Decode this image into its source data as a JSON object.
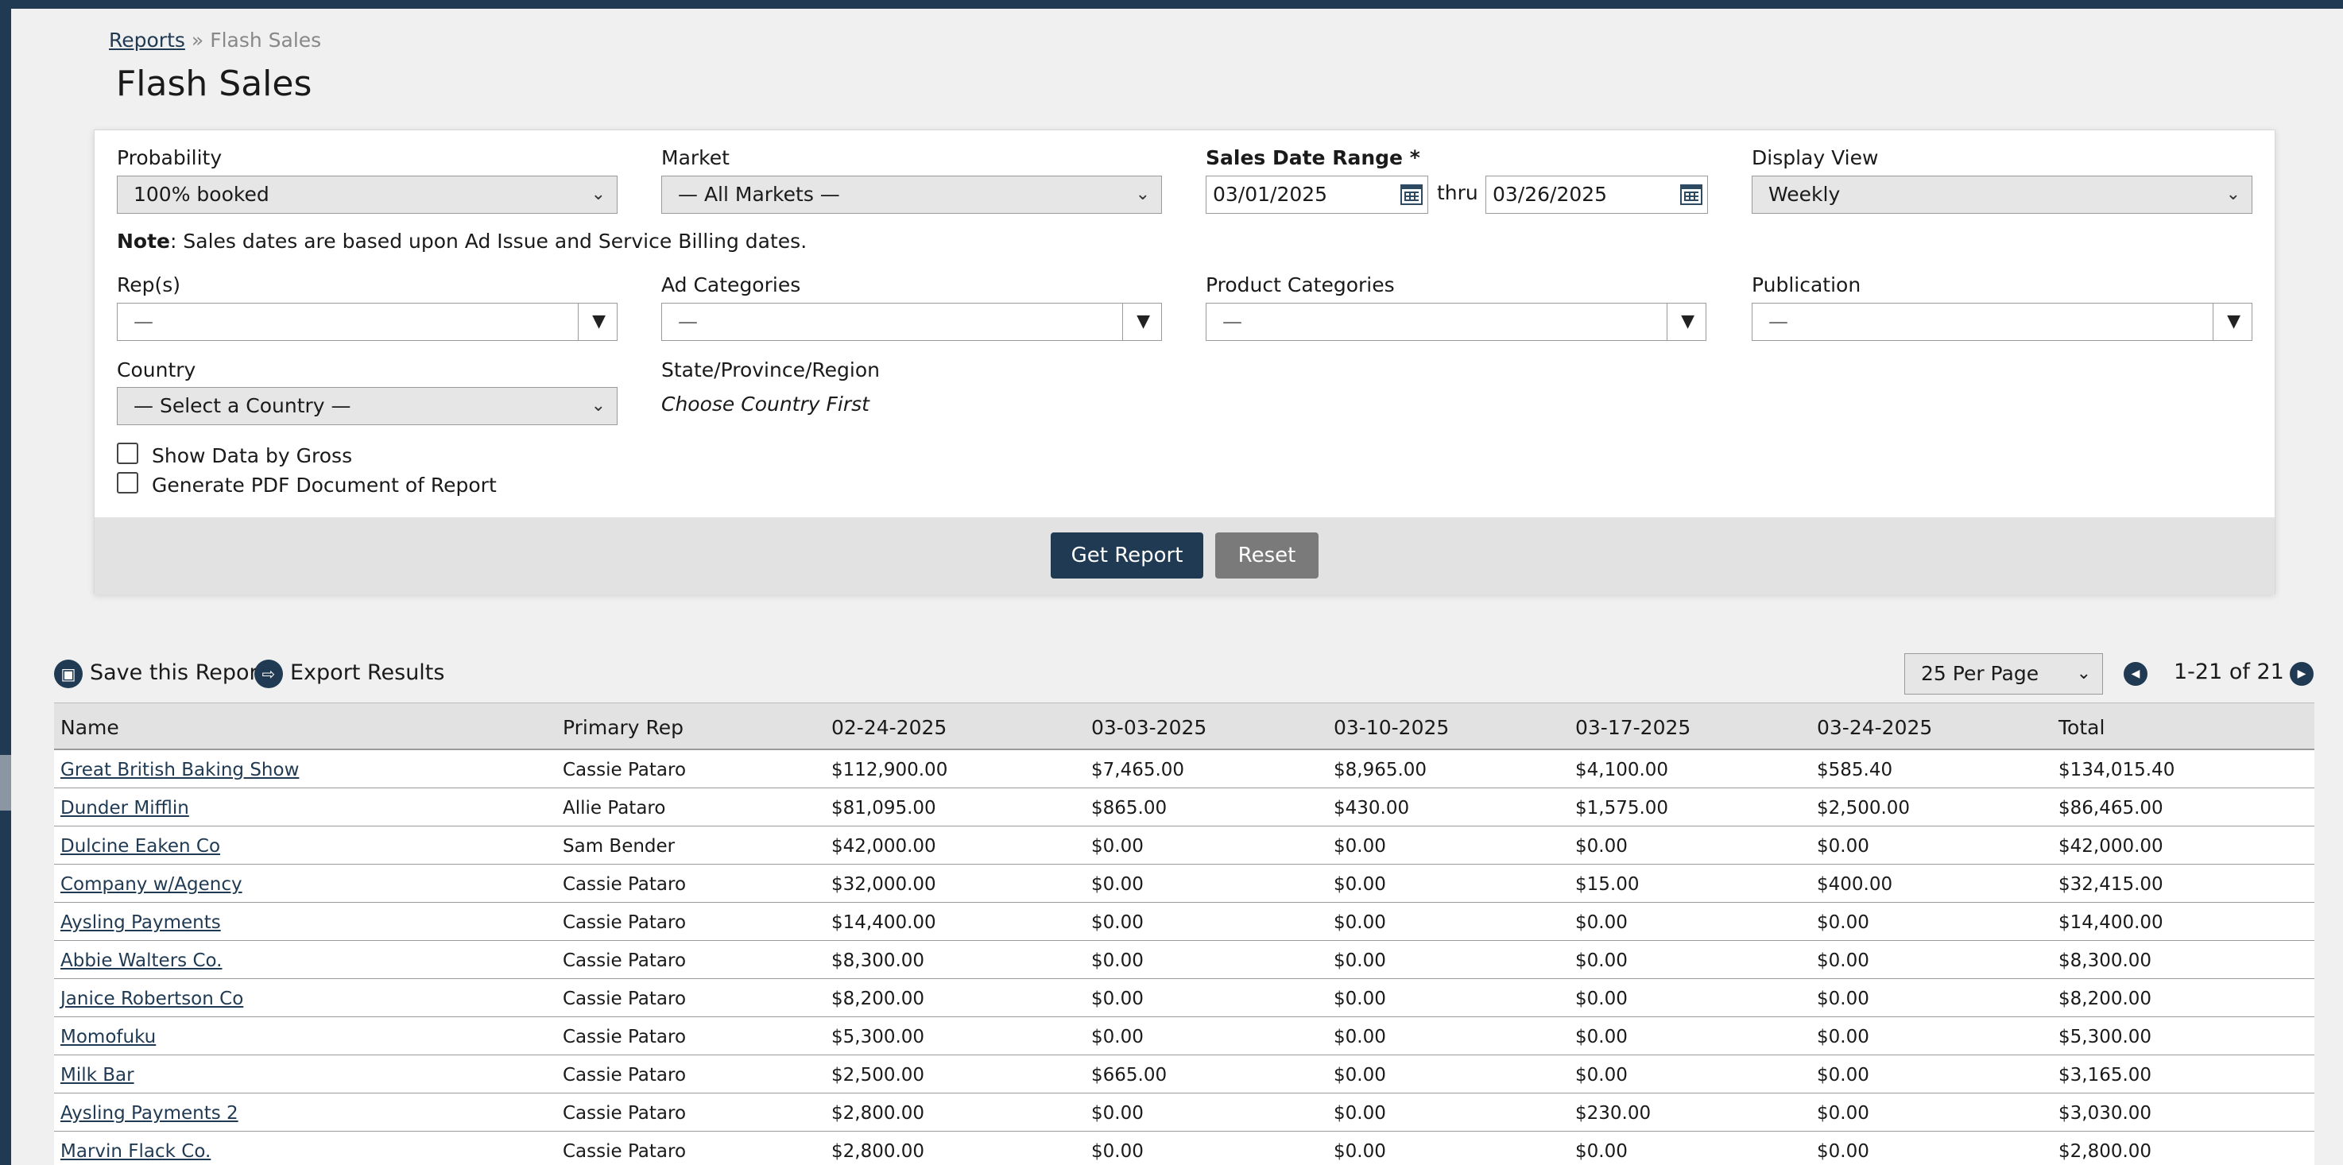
{
  "breadcrumb": {
    "parent": "Reports",
    "separator": "»",
    "current": "Flash Sales"
  },
  "page_title": "Flash Sales",
  "filters": {
    "probability": {
      "label": "Probability",
      "value": "100% booked"
    },
    "market": {
      "label": "Market",
      "value": "— All Markets —"
    },
    "sales_date_range": {
      "label": "Sales Date Range *",
      "from": "03/01/2025",
      "thru_label": "thru",
      "to": "03/26/2025"
    },
    "display_view": {
      "label": "Display View",
      "value": "Weekly"
    },
    "note_prefix": "Note",
    "note_text": ": Sales dates are based upon Ad Issue and Service Billing dates.",
    "reps": {
      "label": "Rep(s)",
      "value": "—"
    },
    "ad_categories": {
      "label": "Ad Categories",
      "value": "—"
    },
    "product_categories": {
      "label": "Product Categories",
      "value": "—"
    },
    "publication": {
      "label": "Publication",
      "value": "—"
    },
    "country": {
      "label": "Country",
      "value": "— Select a Country —"
    },
    "state": {
      "label": "State/Province/Region",
      "value": "Choose Country First"
    },
    "show_gross": "Show Data by Gross",
    "generate_pdf": "Generate PDF Document of Report"
  },
  "buttons": {
    "get_report": "Get Report",
    "reset": "Reset"
  },
  "toolbar": {
    "save_report": "Save this Report",
    "export_results": "Export Results",
    "per_page": "25 Per Page",
    "pager_text": "1-21 of 21"
  },
  "table": {
    "headers": [
      "Name",
      "Primary Rep",
      "02-24-2025",
      "03-03-2025",
      "03-10-2025",
      "03-17-2025",
      "03-24-2025",
      "Total"
    ],
    "rows": [
      [
        "Great British Baking Show",
        "Cassie Pataro",
        "$112,900.00",
        "$7,465.00",
        "$8,965.00",
        "$4,100.00",
        "$585.40",
        "$134,015.40"
      ],
      [
        "Dunder Mifflin",
        "Allie Pataro",
        "$81,095.00",
        "$865.00",
        "$430.00",
        "$1,575.00",
        "$2,500.00",
        "$86,465.00"
      ],
      [
        "Dulcine Eaken Co",
        "Sam Bender",
        "$42,000.00",
        "$0.00",
        "$0.00",
        "$0.00",
        "$0.00",
        "$42,000.00"
      ],
      [
        "Company w/Agency",
        "Cassie Pataro",
        "$32,000.00",
        "$0.00",
        "$0.00",
        "$15.00",
        "$400.00",
        "$32,415.00"
      ],
      [
        "Aysling Payments",
        "Cassie Pataro",
        "$14,400.00",
        "$0.00",
        "$0.00",
        "$0.00",
        "$0.00",
        "$14,400.00"
      ],
      [
        "Abbie Walters Co.",
        "Cassie Pataro",
        "$8,300.00",
        "$0.00",
        "$0.00",
        "$0.00",
        "$0.00",
        "$8,300.00"
      ],
      [
        "Janice Robertson Co",
        "Cassie Pataro",
        "$8,200.00",
        "$0.00",
        "$0.00",
        "$0.00",
        "$0.00",
        "$8,200.00"
      ],
      [
        "Momofuku",
        "Cassie Pataro",
        "$5,300.00",
        "$0.00",
        "$0.00",
        "$0.00",
        "$0.00",
        "$5,300.00"
      ],
      [
        "Milk Bar",
        "Cassie Pataro",
        "$2,500.00",
        "$665.00",
        "$0.00",
        "$0.00",
        "$0.00",
        "$3,165.00"
      ],
      [
        "Aysling Payments 2",
        "Cassie Pataro",
        "$2,800.00",
        "$0.00",
        "$0.00",
        "$230.00",
        "$0.00",
        "$3,030.00"
      ],
      [
        "Marvin Flack Co.",
        "Cassie Pataro",
        "$2,800.00",
        "$0.00",
        "$0.00",
        "$0.00",
        "$0.00",
        "$2,800.00"
      ]
    ]
  }
}
